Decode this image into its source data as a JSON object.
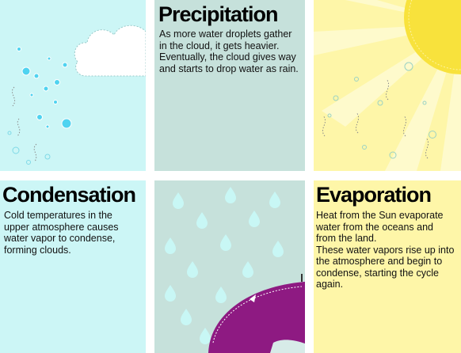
{
  "panels": {
    "precipitation": {
      "title": "Precipitation",
      "text": "As more water droplets gather in the cloud, it gets heavier. Eventually, the cloud gives way and starts to drop water as rain."
    },
    "condensation": {
      "title": "Condensation",
      "text": "Cold temperatures in the upper atmosphere causes water vapor to condense, forming clouds."
    },
    "evaporation": {
      "title": "Evaporation",
      "text_lines": [
        "Heat from the Sun evaporate water from the oceans and from the land.",
        "These water vapors rise up into the atmosphere and begin to condense, starting the cycle again."
      ]
    }
  },
  "colors": {
    "cyan_panel": "#ccf6f6",
    "grey_panel": "#c6e1db",
    "yellow_panel": "#fef6a8",
    "sun": "#f8e23c",
    "umbrella": "#8e1a82",
    "raindrop": "#c8f7f5"
  }
}
